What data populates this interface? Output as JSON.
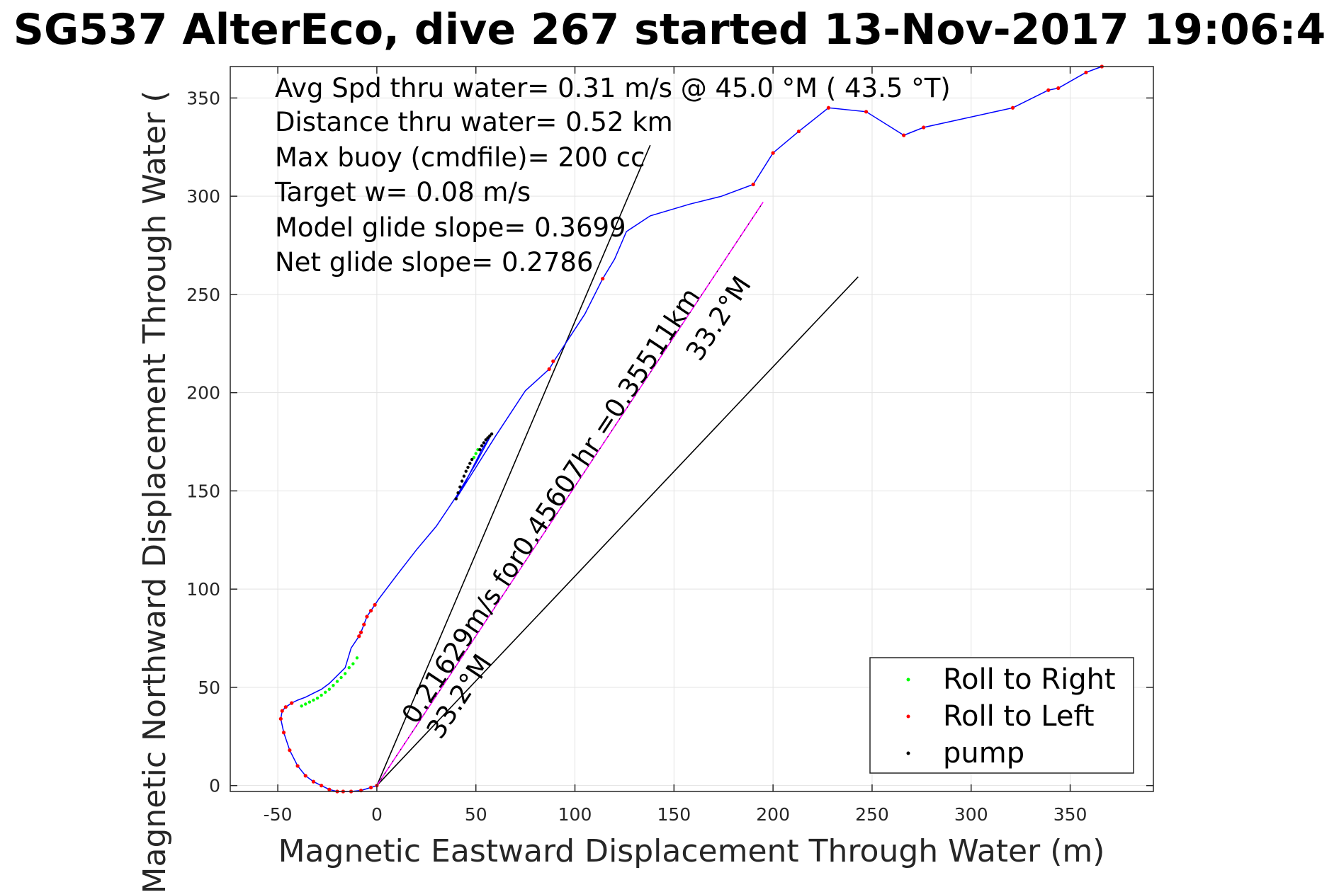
{
  "chart_data": {
    "type": "line",
    "title": "SG537 AlterEco, dive 267 started 13-Nov-2017 19:06:4",
    "xlabel": "Magnetic Eastward Displacement Through Water (m)",
    "ylabel": "Magnetic Northward Displacement Through Water (",
    "xlim": [
      -74,
      392
    ],
    "ylim": [
      -3,
      366
    ],
    "xticks": [
      -50,
      0,
      50,
      100,
      150,
      200,
      250,
      300,
      350
    ],
    "yticks": [
      0,
      50,
      100,
      150,
      200,
      250,
      300,
      350
    ],
    "grid": true,
    "legend_position": "bottom-right",
    "stats": [
      "Avg Spd thru water=  0.31 m/s @  45.0 °M ( 43.5 °T)",
      "Distance thru water=  0.52 km",
      "Max buoy (cmdfile)= 200 cc",
      "Target w= 0.08 m/s",
      "Model glide slope= 0.3699",
      "Net glide slope= 0.2786"
    ],
    "annotations": [
      "0.21629m/s for0.45607hr =0.35511km",
      "33.2°M",
      "33.2°M"
    ],
    "track": {
      "color": "#0000ff",
      "x": [
        0,
        -3,
        -8,
        -13,
        -17,
        -20,
        -24,
        -28,
        -32,
        -36,
        -40,
        -44,
        -47,
        -48.5,
        -47.8,
        -46,
        -43,
        -40,
        -36,
        -32,
        -28,
        -24,
        -20,
        -16,
        -13,
        -11,
        -9,
        -8,
        -6.5,
        -5,
        -3,
        -1,
        1,
        10,
        20,
        30,
        40,
        50,
        58,
        53,
        49,
        46,
        43,
        40,
        60,
        75,
        87,
        90,
        105,
        114,
        120,
        126,
        138,
        158,
        174,
        190,
        200,
        213,
        228,
        247,
        266,
        276,
        321,
        339,
        344,
        358,
        366
      ],
      "y": [
        0,
        -1,
        -2.5,
        -3,
        -3,
        -3,
        -2,
        0,
        2,
        5,
        10,
        18,
        27,
        34,
        38,
        40,
        42,
        43.5,
        45,
        47,
        49,
        52,
        56,
        60,
        70,
        73,
        76,
        78,
        82,
        86,
        89,
        92,
        95,
        107,
        120,
        132,
        147,
        164,
        179,
        171,
        163,
        157,
        151,
        146,
        178,
        201,
        212,
        217,
        240,
        258,
        268,
        282,
        290,
        296,
        300,
        306,
        322,
        333,
        345,
        343,
        331,
        335,
        345,
        354,
        355,
        363,
        366
      ]
    },
    "series": [
      {
        "name": "Roll to Right",
        "color": "#00ff00",
        "x": [
          -38,
          -36,
          -34,
          -32,
          -30,
          -28,
          -26,
          -24,
          -22,
          -20,
          -18,
          -16,
          -14,
          -12,
          -10,
          49,
          50,
          51
        ],
        "y": [
          40.5,
          41.5,
          42.5,
          43.5,
          44.5,
          46,
          47.5,
          49,
          51,
          53,
          55,
          57,
          60,
          62,
          65,
          167,
          169,
          171
        ]
      },
      {
        "name": "Roll to Left",
        "color": "#ff0000",
        "x": [
          0,
          -3,
          -8,
          -13,
          -17,
          -20,
          -24,
          -28,
          -32,
          -36,
          -40,
          -44,
          -47,
          -48.5,
          -47.8,
          -46,
          -43,
          -9,
          -8,
          -6.5,
          -5,
          -3,
          -1,
          87,
          89,
          114,
          190,
          200,
          213,
          228,
          247,
          266,
          276,
          321,
          339,
          344,
          358,
          366
        ],
        "y": [
          0,
          -1,
          -2.5,
          -3,
          -3,
          -3,
          -2,
          0,
          2,
          5,
          10,
          18,
          27,
          34,
          38,
          40,
          42,
          76,
          78,
          82,
          86,
          89,
          92,
          212,
          216,
          258,
          306,
          322,
          333,
          345,
          343,
          331,
          335,
          345,
          354,
          355,
          363,
          366
        ]
      },
      {
        "name": "pump",
        "color": "#000000",
        "x": [
          40,
          41,
          42,
          43,
          44,
          45,
          46,
          47,
          48,
          52,
          53,
          54,
          55,
          56,
          57,
          58
        ],
        "y": [
          146,
          149,
          152,
          155,
          157.5,
          160,
          162,
          164,
          166,
          171,
          173,
          174.5,
          176,
          177,
          178,
          179
        ]
      }
    ],
    "lines": [
      {
        "color": "#000000",
        "x": [
          0,
          138
        ],
        "y": [
          0,
          326
        ]
      },
      {
        "color": "#000000",
        "x": [
          0,
          243
        ],
        "y": [
          0,
          259
        ]
      },
      {
        "color": "#ff00ff",
        "x": [
          0,
          195
        ],
        "y": [
          0,
          297
        ]
      },
      {
        "color": "#000000",
        "x": [
          0,
          195
        ],
        "y": [
          0,
          297
        ]
      }
    ]
  }
}
